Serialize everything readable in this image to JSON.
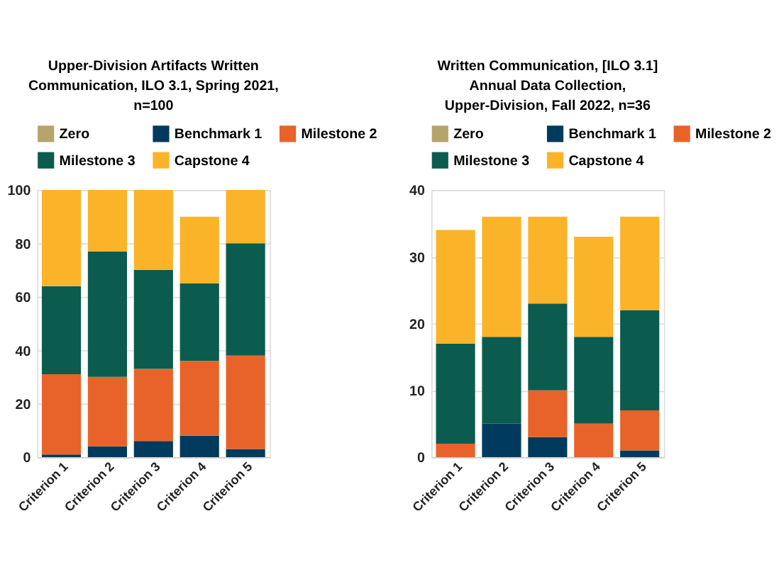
{
  "chart_data": [
    {
      "type": "bar",
      "title": "Upper-Division Artifacts Written Communication, ILO 3.1, Spring 2021, n=100",
      "stacked": true,
      "legend": "top",
      "grid": "y",
      "categories": [
        "Criterion 1",
        "Criterion 2",
        "Criterion 3",
        "Criterion 4",
        "Criterion 5"
      ],
      "ylim": [
        0,
        100
      ],
      "yticks": [
        0,
        20,
        40,
        60,
        80,
        100
      ],
      "series": [
        {
          "name": "Zero",
          "color": "#b5a46c",
          "values": [
            0,
            0,
            0,
            0,
            0
          ]
        },
        {
          "name": "Benchmark 1",
          "color": "#003a5d",
          "values": [
            1,
            4,
            6,
            8,
            3
          ]
        },
        {
          "name": "Milestone 2",
          "color": "#e8632a",
          "values": [
            30,
            26,
            27,
            28,
            35
          ]
        },
        {
          "name": "Milestone 3",
          "color": "#0b5c4f",
          "values": [
            33,
            47,
            37,
            29,
            42
          ]
        },
        {
          "name": "Capstone 4",
          "color": "#fbb32a",
          "values": [
            36,
            23,
            30,
            25,
            20
          ]
        }
      ]
    },
    {
      "type": "bar",
      "title": "Written Communication, [ILO 3.1] Annual Data Collection, Upper-Division, Fall 2022, n=36",
      "stacked": true,
      "legend": "top",
      "grid": "y",
      "categories": [
        "Criterion 1",
        "Criterion 2",
        "Criterion 3",
        "Criterion 4",
        "Criterion 5"
      ],
      "ylim": [
        0,
        40
      ],
      "yticks": [
        0,
        10,
        20,
        30,
        40
      ],
      "series": [
        {
          "name": "Zero",
          "color": "#b5a46c",
          "values": [
            0,
            0,
            0,
            0,
            0
          ]
        },
        {
          "name": "Benchmark 1",
          "color": "#003a5d",
          "values": [
            0,
            5,
            3,
            0,
            1
          ]
        },
        {
          "name": "Milestone 2",
          "color": "#e8632a",
          "values": [
            2,
            0,
            7,
            5,
            6
          ]
        },
        {
          "name": "Milestone 3",
          "color": "#0b5c4f",
          "values": [
            15,
            13,
            13,
            13,
            15
          ]
        },
        {
          "name": "Capstone 4",
          "color": "#fbb32a",
          "values": [
            17,
            18,
            13,
            15,
            14
          ]
        }
      ]
    }
  ]
}
